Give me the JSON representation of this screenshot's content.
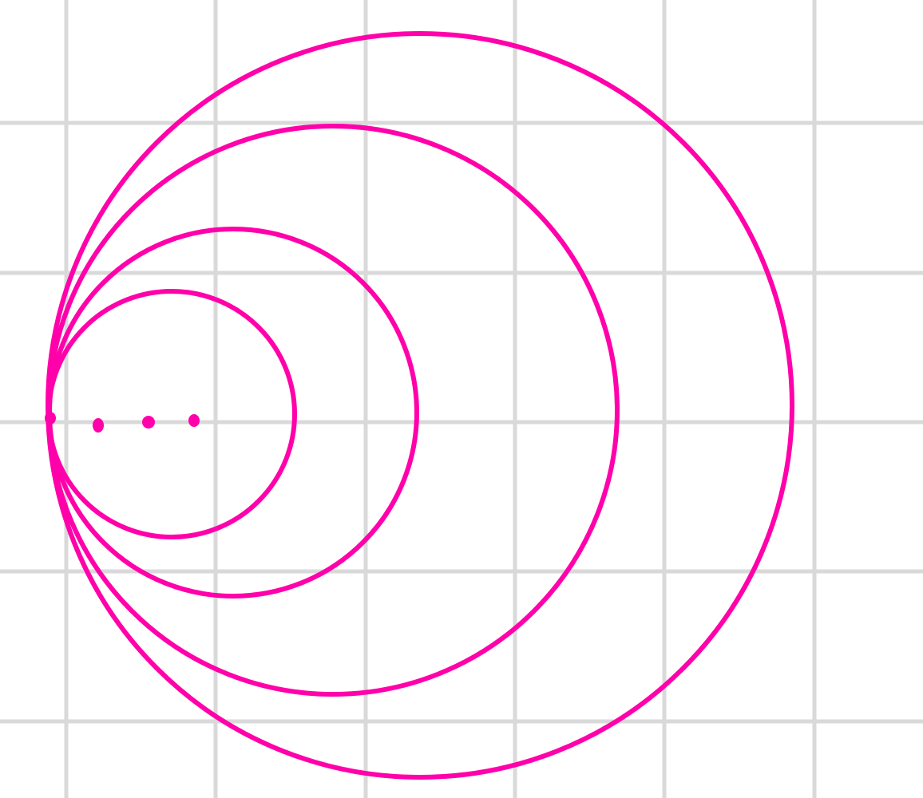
{
  "diagram": {
    "background": "#ffffff",
    "grid_color": "#d9d9d9",
    "stroke_color": "#ff00aa",
    "point_color": "#ff00aa",
    "shapes": [
      {
        "kind": "circle",
        "name": "circle-smallest"
      },
      {
        "kind": "circle",
        "name": "circle-second"
      },
      {
        "kind": "circle",
        "name": "circle-third"
      },
      {
        "kind": "circle",
        "name": "circle-largest"
      }
    ],
    "points": [
      {
        "name": "point-tangent"
      },
      {
        "name": "dot-1"
      },
      {
        "name": "dot-2"
      },
      {
        "name": "dot-3"
      }
    ],
    "grid": true
  }
}
